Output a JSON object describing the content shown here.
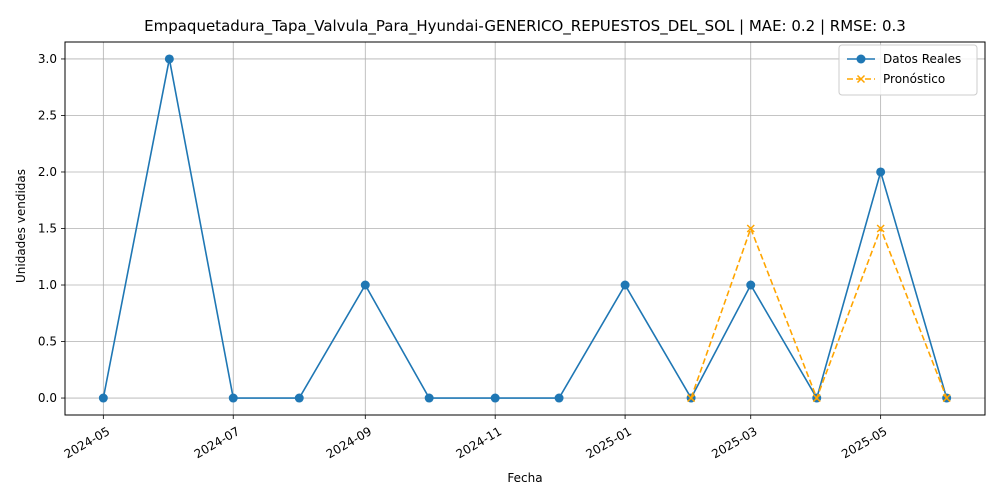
{
  "chart_data": {
    "type": "line",
    "title": "Empaquetadura_Tapa_Valvula_Para_Hyundai-GENERICO_REPUESTOS_DEL_SOL | MAE: 0.2 | RMSE: 0.3",
    "xlabel": "Fecha",
    "ylabel": "Unidades vendidas",
    "x_ticks": [
      "2024-05",
      "2024-07",
      "2024-09",
      "2024-11",
      "2025-01",
      "2025-03",
      "2025-05"
    ],
    "x_tick_dates": [
      "2024-05-01",
      "2024-07-01",
      "2024-09-01",
      "2024-11-01",
      "2025-01-01",
      "2025-03-01",
      "2025-05-01"
    ],
    "xlim": [
      "2024-04-13",
      "2025-06-19"
    ],
    "y_ticks": [
      "0.0",
      "0.5",
      "1.0",
      "1.5",
      "2.0",
      "2.5",
      "3.0"
    ],
    "y_tick_values": [
      0,
      0.5,
      1.0,
      1.5,
      2.0,
      2.5,
      3.0
    ],
    "ylim": [
      -0.15,
      3.15
    ],
    "grid": true,
    "legend_position": "top-right",
    "series": [
      {
        "name": "Datos Reales",
        "color": "#1f77b4",
        "marker": "circle",
        "linestyle": "solid",
        "x": [
          "2024-05-01",
          "2024-06-01",
          "2024-07-01",
          "2024-08-01",
          "2024-09-01",
          "2024-10-01",
          "2024-11-01",
          "2024-12-01",
          "2025-01-01",
          "2025-02-01",
          "2025-03-01",
          "2025-04-01",
          "2025-05-01",
          "2025-06-01"
        ],
        "y": [
          0,
          3,
          0,
          0,
          1,
          0,
          0,
          0,
          1,
          0,
          1,
          0,
          2,
          0
        ]
      },
      {
        "name": "Pronóstico",
        "color": "#ffa500",
        "marker": "x",
        "linestyle": "dashed",
        "x": [
          "2025-02-01",
          "2025-03-01",
          "2025-04-01",
          "2025-05-01",
          "2025-06-01"
        ],
        "y": [
          0,
          1.5,
          0,
          1.5,
          0
        ]
      }
    ]
  }
}
